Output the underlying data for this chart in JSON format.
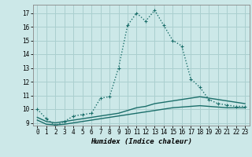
{
  "title": "",
  "xlabel": "Humidex (Indice chaleur)",
  "ylabel": "",
  "background_color": "#cce8e8",
  "grid_color": "#aacfcf",
  "line_color": "#1a6e6a",
  "xlim": [
    -0.5,
    23.5
  ],
  "ylim": [
    8.8,
    17.6
  ],
  "yticks": [
    9,
    10,
    11,
    12,
    13,
    14,
    15,
    16,
    17
  ],
  "xticks": [
    0,
    1,
    2,
    3,
    4,
    5,
    6,
    7,
    8,
    9,
    10,
    11,
    12,
    13,
    14,
    15,
    16,
    17,
    18,
    19,
    20,
    21,
    22,
    23
  ],
  "series": [
    {
      "x": [
        0,
        1,
        2,
        3,
        4,
        5,
        6,
        7,
        8,
        9,
        10,
        11,
        12,
        13,
        14,
        15,
        16,
        17,
        18,
        19,
        20,
        21,
        22,
        23
      ],
      "y": [
        10.0,
        9.3,
        8.8,
        9.1,
        9.5,
        9.6,
        9.7,
        10.8,
        10.9,
        13.0,
        16.1,
        17.0,
        16.4,
        17.2,
        16.1,
        15.0,
        14.6,
        12.2,
        11.6,
        10.7,
        10.4,
        10.3,
        10.2,
        10.2
      ],
      "style": "dotted",
      "marker": "+"
    },
    {
      "x": [
        0,
        1,
        2,
        3,
        4,
        5,
        6,
        7,
        8,
        9,
        10,
        11,
        12,
        13,
        14,
        15,
        16,
        17,
        18,
        19,
        20,
        21,
        22,
        23
      ],
      "y": [
        9.4,
        9.1,
        9.0,
        9.1,
        9.2,
        9.3,
        9.4,
        9.5,
        9.6,
        9.7,
        9.9,
        10.1,
        10.2,
        10.4,
        10.5,
        10.6,
        10.7,
        10.8,
        10.9,
        10.8,
        10.7,
        10.6,
        10.5,
        10.4
      ],
      "style": "solid",
      "marker": null
    },
    {
      "x": [
        0,
        1,
        2,
        3,
        4,
        5,
        6,
        7,
        8,
        9,
        10,
        11,
        12,
        13,
        14,
        15,
        16,
        17,
        18,
        19,
        20,
        21,
        22,
        23
      ],
      "y": [
        9.2,
        8.9,
        8.85,
        8.9,
        9.0,
        9.1,
        9.2,
        9.3,
        9.4,
        9.5,
        9.6,
        9.7,
        9.8,
        9.9,
        10.0,
        10.1,
        10.15,
        10.2,
        10.25,
        10.2,
        10.15,
        10.1,
        10.1,
        10.1
      ],
      "style": "solid",
      "marker": null
    }
  ]
}
